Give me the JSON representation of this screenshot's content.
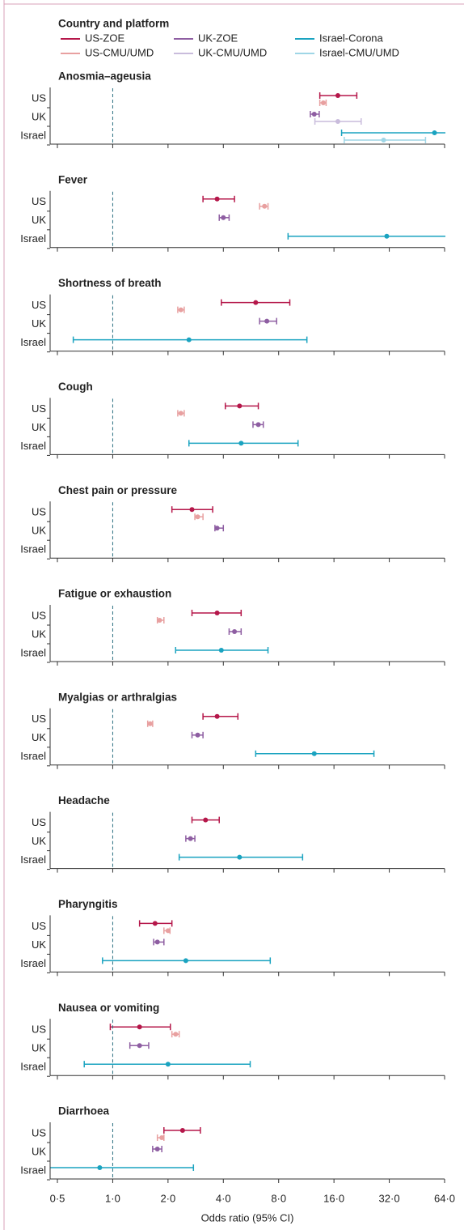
{
  "chart_data": {
    "type": "forest",
    "legend_title": "Country and platform",
    "xlabel": "Odds ratio (95% CI)",
    "log_x": true,
    "xlim": [
      0.5,
      64
    ],
    "xticks": [
      {
        "value": 0.5,
        "label": "0·5"
      },
      {
        "value": 1,
        "label": "1·0"
      },
      {
        "value": 2,
        "label": "2·0"
      },
      {
        "value": 4,
        "label": "4·0"
      },
      {
        "value": 8,
        "label": "8·0"
      },
      {
        "value": 16,
        "label": "16·0"
      },
      {
        "value": 32,
        "label": "32·0"
      },
      {
        "value": 64,
        "label": "64·0"
      }
    ],
    "reference_line": 1,
    "rows": [
      "US",
      "UK",
      "Israel"
    ],
    "categories": [
      "Anosmia–ageusia",
      "Fever",
      "Shortness of breath",
      "Cough",
      "Chest pain or pressure",
      "Fatigue or exhaustion",
      "Myalgias or arthralgias",
      "Headache",
      "Pharyngitis",
      "Nausea or vomiting",
      "Diarrhoea"
    ],
    "series": [
      {
        "name": "US-ZOE",
        "color": "#b5174a",
        "values": [
          16.8,
          3.7,
          6.0,
          4.9,
          2.7,
          3.7,
          3.7,
          3.2,
          1.7,
          1.4,
          2.4
        ],
        "lower": [
          13.4,
          3.1,
          3.9,
          4.1,
          2.1,
          2.7,
          3.1,
          2.7,
          1.4,
          0.97,
          1.9
        ],
        "upper": [
          21.3,
          4.6,
          9.2,
          6.2,
          3.5,
          5.0,
          4.8,
          3.8,
          2.1,
          2.06,
          3.0
        ]
      },
      {
        "name": "UK-ZOE",
        "color": "#8e5ea2",
        "values": [
          12.5,
          4.0,
          6.9,
          6.2,
          3.7,
          4.6,
          2.9,
          2.65,
          1.75,
          1.4,
          1.75
        ],
        "lower": [
          11.9,
          3.8,
          6.3,
          5.8,
          3.6,
          4.3,
          2.7,
          2.5,
          1.67,
          1.24,
          1.65
        ],
        "upper": [
          13.3,
          4.3,
          7.8,
          6.6,
          4.0,
          5.0,
          3.1,
          2.8,
          1.9,
          1.57,
          1.85
        ]
      },
      {
        "name": "Israel-Corona",
        "color": "#1aa3c0",
        "values": [
          56.4,
          31.0,
          2.6,
          5.0,
          null,
          3.9,
          12.5,
          4.9,
          2.5,
          2.0,
          0.85
        ],
        "lower": [
          17.6,
          9.0,
          0.61,
          2.6,
          null,
          2.2,
          6.0,
          2.3,
          0.88,
          0.7,
          0.4
        ],
        "upper": [
          70,
          70,
          11.4,
          10.2,
          null,
          7.0,
          26.4,
          10.8,
          7.2,
          5.6,
          2.75
        ]
      },
      {
        "name": "US-CMU/UMD",
        "color": "#e8a0a0",
        "values": [
          14.0,
          6.7,
          2.35,
          2.35,
          2.9,
          1.8,
          1.6,
          null,
          2.0,
          2.2,
          1.85
        ],
        "lower": [
          13.4,
          6.3,
          2.26,
          2.26,
          2.8,
          1.75,
          1.55,
          null,
          1.9,
          2.1,
          1.75
        ],
        "upper": [
          14.5,
          7.0,
          2.45,
          2.45,
          3.1,
          1.9,
          1.65,
          null,
          2.05,
          2.3,
          1.9
        ]
      },
      {
        "name": "UK-CMU/UMD",
        "color": "#c9bcdc",
        "values": [
          16.8,
          null,
          null,
          null,
          null,
          null,
          null,
          null,
          null,
          null,
          null
        ],
        "lower": [
          12.6,
          null,
          null,
          null,
          null,
          null,
          null,
          null,
          null,
          null,
          null
        ],
        "upper": [
          22.5,
          null,
          null,
          null,
          null,
          null,
          null,
          null,
          null,
          null,
          null
        ]
      },
      {
        "name": "Israel-CMU/UMD",
        "color": "#9fd6e6",
        "values": [
          29.8,
          null,
          null,
          null,
          null,
          null,
          null,
          null,
          null,
          null,
          null
        ],
        "lower": [
          18.2,
          null,
          null,
          null,
          null,
          null,
          null,
          null,
          null,
          null,
          null
        ],
        "upper": [
          50.4,
          null,
          null,
          null,
          null,
          null,
          null,
          null,
          null,
          null,
          null
        ]
      }
    ]
  }
}
